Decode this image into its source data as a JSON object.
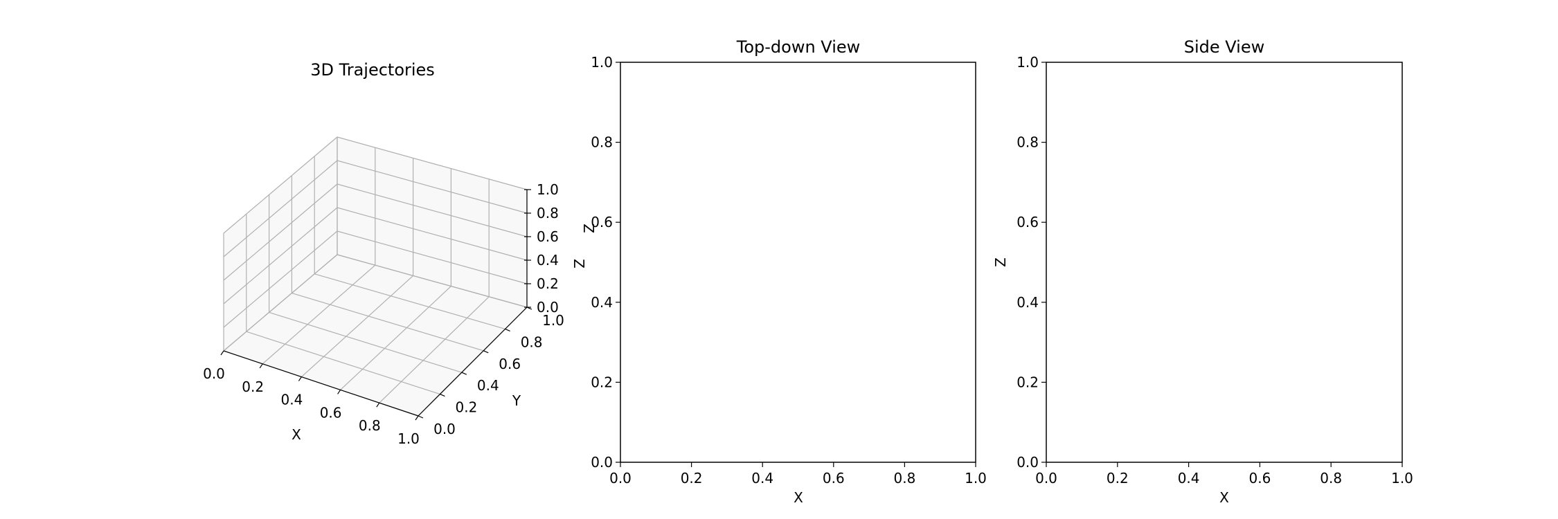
{
  "chart_data": [
    {
      "type": "line",
      "projection": "3d",
      "title": "3D Trajectories",
      "xlabel": "X",
      "ylabel": "Y",
      "zlabel": "Z",
      "xlim": [
        0,
        1
      ],
      "ylim": [
        0,
        1
      ],
      "zlim": [
        0,
        1
      ],
      "xticks": [
        "0.0",
        "0.2",
        "0.4",
        "0.6",
        "0.8",
        "1.0"
      ],
      "yticks": [
        "0.0",
        "0.2",
        "0.4",
        "0.6",
        "0.8",
        "1.0"
      ],
      "zticks": [
        "0.0",
        "0.2",
        "0.4",
        "0.6",
        "0.8",
        "1.0"
      ],
      "grid": true,
      "series": []
    },
    {
      "type": "line",
      "title": "Top-down View",
      "xlabel": "X",
      "ylabel": "Z",
      "xlim": [
        0,
        1
      ],
      "ylim": [
        0,
        1
      ],
      "xticks": [
        "0.0",
        "0.2",
        "0.4",
        "0.6",
        "0.8",
        "1.0"
      ],
      "yticks": [
        "0.0",
        "0.2",
        "0.4",
        "0.6",
        "0.8",
        "1.0"
      ],
      "grid": false,
      "series": []
    },
    {
      "type": "line",
      "title": "Side View",
      "xlabel": "X",
      "ylabel": "Z",
      "xlim": [
        0,
        1
      ],
      "ylim": [
        0,
        1
      ],
      "xticks": [
        "0.0",
        "0.2",
        "0.4",
        "0.6",
        "0.8",
        "1.0"
      ],
      "yticks": [
        "0.0",
        "0.2",
        "0.4",
        "0.6",
        "0.8",
        "1.0"
      ],
      "grid": false,
      "series": []
    }
  ]
}
